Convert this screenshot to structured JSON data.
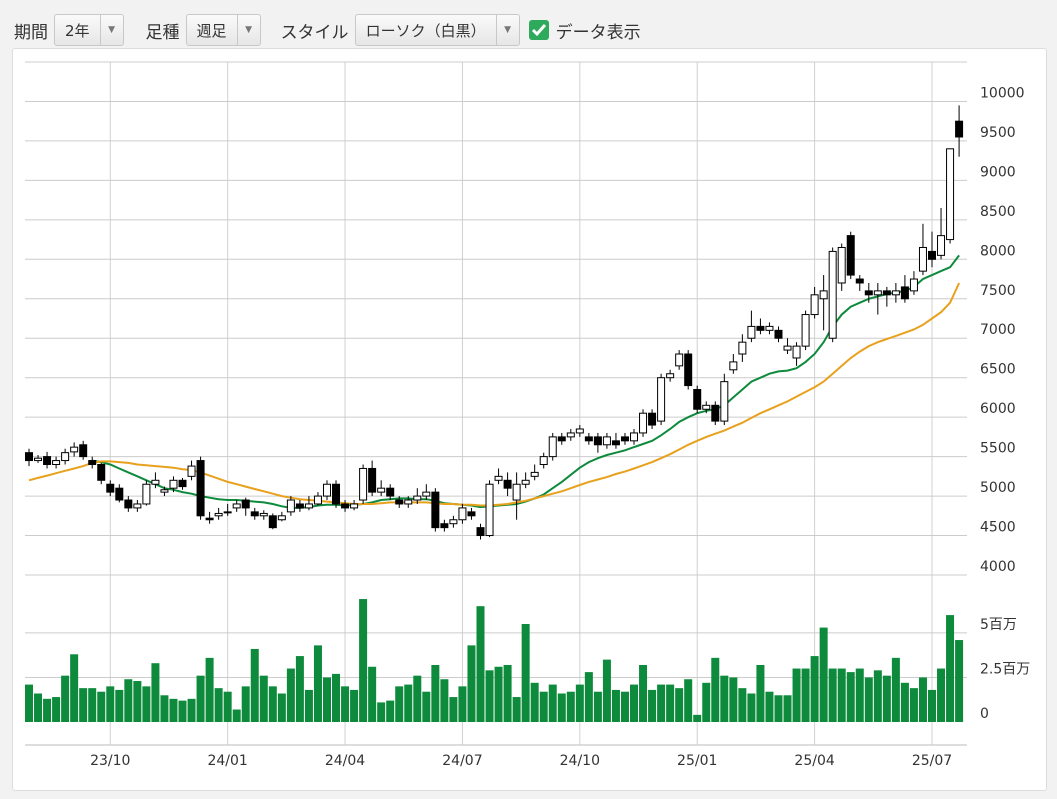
{
  "controls": {
    "period_label": "期間",
    "period": "2年",
    "bar_label": "足種",
    "bar": "週足",
    "style_label": "スタイル",
    "style": "ローソク（白黒）",
    "show_data": "データ表示",
    "data_checked": true
  },
  "chart_data": {
    "type": "candlestick",
    "grid": true,
    "up_color": "#ffffff",
    "down_color": "#000000",
    "categories": [
      null,
      null,
      null,
      null,
      null,
      null,
      null,
      null,
      null,
      "23/10",
      null,
      null,
      null,
      null,
      null,
      null,
      null,
      null,
      null,
      null,
      null,
      null,
      "24/01",
      null,
      null,
      null,
      null,
      null,
      null,
      null,
      null,
      null,
      null,
      null,
      null,
      "24/04",
      null,
      null,
      null,
      null,
      null,
      null,
      null,
      null,
      null,
      null,
      null,
      null,
      "24/07",
      null,
      null,
      null,
      null,
      null,
      null,
      null,
      null,
      null,
      null,
      null,
      null,
      "24/10",
      null,
      null,
      null,
      null,
      null,
      null,
      null,
      null,
      null,
      null,
      null,
      null,
      "25/01",
      null,
      null,
      null,
      null,
      null,
      null,
      null,
      null,
      null,
      null,
      null,
      null,
      "25/04",
      null,
      null,
      null,
      null,
      null,
      null,
      null,
      null,
      null,
      null,
      null,
      null,
      "25/07",
      null,
      null,
      null
    ],
    "open": [
      5550,
      5450,
      5500,
      5400,
      5450,
      5560,
      5650,
      5450,
      5400,
      5150,
      5100,
      4950,
      4850,
      4900,
      5150,
      5050,
      5100,
      5200,
      5250,
      5450,
      4720,
      4750,
      4800,
      4850,
      4950,
      4800,
      4750,
      4750,
      4700,
      4800,
      4900,
      4850,
      4900,
      5000,
      5150,
      4900,
      4850,
      4950,
      5350,
      5050,
      5100,
      4950,
      4900,
      4950,
      5000,
      5050,
      4650,
      4650,
      4700,
      4800,
      4600,
      4500,
      5200,
      5200,
      4950,
      5150,
      5250,
      5400,
      5500,
      5750,
      5750,
      5800,
      5750,
      5750,
      5650,
      5700,
      5750,
      5700,
      5800,
      6050,
      5950,
      6500,
      6650,
      6800,
      6350,
      6100,
      6150,
      5950,
      6600,
      6800,
      7000,
      7150,
      7100,
      7100,
      6850,
      6750,
      6900,
      7300,
      7500,
      7000,
      7700,
      8300,
      7750,
      7600,
      7550,
      7600,
      7550,
      7650,
      7600,
      7850,
      8100,
      8050,
      8250,
      9750
    ],
    "high": [
      5600,
      5520,
      5560,
      5500,
      5600,
      5680,
      5700,
      5500,
      5420,
      5200,
      5150,
      5000,
      4950,
      5200,
      5300,
      5120,
      5250,
      5230,
      5450,
      5500,
      4800,
      4850,
      4900,
      4950,
      4980,
      4850,
      4820,
      4780,
      4800,
      5000,
      4950,
      5000,
      5050,
      5200,
      5200,
      4950,
      4950,
      5400,
      5450,
      5200,
      5150,
      5000,
      5000,
      5100,
      5150,
      5100,
      4700,
      4750,
      4900,
      4850,
      4650,
      5200,
      5350,
      5300,
      5300,
      5300,
      5400,
      5550,
      5800,
      5800,
      5850,
      5900,
      5800,
      5800,
      5800,
      5800,
      5800,
      5850,
      6100,
      6100,
      6550,
      6600,
      6850,
      6850,
      6400,
      6200,
      6200,
      6550,
      6800,
      7050,
      7350,
      7250,
      7200,
      7150,
      7000,
      6950,
      7350,
      7650,
      7800,
      8150,
      8200,
      8350,
      7800,
      7700,
      7700,
      7650,
      7700,
      7800,
      7850,
      8450,
      8350,
      8650,
      9400,
      9950
    ],
    "low": [
      5380,
      5420,
      5350,
      5350,
      5400,
      5500,
      5460,
      5350,
      5150,
      5000,
      4920,
      4800,
      4800,
      4880,
      5100,
      5000,
      5050,
      5080,
      5200,
      4700,
      4650,
      4700,
      4750,
      4800,
      4750,
      4700,
      4700,
      4580,
      4680,
      4750,
      4800,
      4820,
      4880,
      4950,
      4850,
      4800,
      4820,
      4900,
      5000,
      5000,
      4950,
      4850,
      4850,
      4900,
      4950,
      4550,
      4550,
      4600,
      4650,
      4700,
      4450,
      4480,
      5150,
      5000,
      4700,
      5100,
      5200,
      5350,
      5450,
      5650,
      5700,
      5750,
      5650,
      5550,
      5600,
      5600,
      5650,
      5650,
      5750,
      5850,
      5900,
      6450,
      6600,
      6350,
      6050,
      6050,
      5900,
      5900,
      6550,
      6700,
      6950,
      7050,
      7050,
      6950,
      6800,
      6650,
      6850,
      7250,
      7100,
      6950,
      7600,
      7750,
      7600,
      7450,
      7300,
      7400,
      7450,
      7450,
      7550,
      7800,
      7900,
      8000,
      8200,
      9300
    ],
    "close": [
      5450,
      5480,
      5400,
      5450,
      5550,
      5620,
      5500,
      5400,
      5200,
      5050,
      4950,
      4850,
      4900,
      5150,
      5200,
      5080,
      5200,
      5120,
      5380,
      4750,
      4700,
      4780,
      4800,
      4900,
      4850,
      4750,
      4780,
      4600,
      4750,
      4950,
      4850,
      4900,
      5000,
      5150,
      4900,
      4850,
      4900,
      5350,
      5050,
      5100,
      5000,
      4900,
      4950,
      5000,
      5050,
      4600,
      4600,
      4700,
      4850,
      4750,
      4500,
      5150,
      5250,
      5100,
      5150,
      5200,
      5300,
      5500,
      5750,
      5700,
      5800,
      5850,
      5700,
      5650,
      5750,
      5650,
      5700,
      5800,
      6050,
      5900,
      6500,
      6550,
      6800,
      6400,
      6100,
      6150,
      5950,
      6450,
      6700,
      6950,
      7150,
      7100,
      7150,
      7000,
      6900,
      6900,
      7300,
      7550,
      7600,
      8100,
      8150,
      7800,
      7700,
      7550,
      7600,
      7550,
      7600,
      7500,
      7750,
      8150,
      8000,
      8300,
      9400,
      9550
    ],
    "ylim": [
      4000,
      10500
    ],
    "yticks": [
      4000,
      4500,
      5000,
      5500,
      6000,
      6500,
      7000,
      7500,
      8000,
      8500,
      9000,
      9500,
      10000
    ],
    "series": [
      {
        "type": "line",
        "color": "#0d8a3c",
        "values": [
          null,
          null,
          null,
          null,
          null,
          null,
          null,
          5450,
          5430,
          5400,
          5350,
          5300,
          5250,
          5200,
          5150,
          5100,
          5080,
          5050,
          5030,
          5000,
          4980,
          4960,
          4950,
          4950,
          4940,
          4930,
          4920,
          4900,
          4870,
          4850,
          4850,
          4860,
          4880,
          4890,
          4890,
          4880,
          4890,
          4900,
          4920,
          4950,
          4960,
          4970,
          4970,
          4960,
          4960,
          4940,
          4910,
          4900,
          4890,
          4880,
          4860,
          4870,
          4880,
          4890,
          4900,
          4930,
          4970,
          5020,
          5100,
          5180,
          5270,
          5360,
          5430,
          5480,
          5520,
          5550,
          5580,
          5620,
          5660,
          5700,
          5770,
          5850,
          5940,
          6000,
          6050,
          6080,
          6100,
          6150,
          6250,
          6350,
          6450,
          6500,
          6550,
          6580,
          6590,
          6620,
          6700,
          6800,
          6950,
          7150,
          7300,
          7400,
          7450,
          7500,
          7530,
          7560,
          7580,
          7600,
          7650,
          7750,
          7800,
          7850,
          7900,
          8050
        ]
      },
      {
        "type": "line",
        "color": "#e8a11c",
        "values": [
          5200,
          5230,
          5260,
          5290,
          5320,
          5350,
          5380,
          5420,
          5440,
          5440,
          5430,
          5420,
          5400,
          5390,
          5380,
          5370,
          5360,
          5340,
          5330,
          5300,
          5260,
          5220,
          5180,
          5150,
          5120,
          5090,
          5060,
          5030,
          5000,
          4980,
          4960,
          4950,
          4940,
          4930,
          4920,
          4910,
          4900,
          4900,
          4900,
          4910,
          4920,
          4920,
          4920,
          4920,
          4920,
          4910,
          4900,
          4900,
          4890,
          4890,
          4880,
          4880,
          4890,
          4900,
          4920,
          4940,
          4970,
          5000,
          5030,
          5060,
          5100,
          5140,
          5180,
          5210,
          5240,
          5280,
          5310,
          5350,
          5390,
          5430,
          5480,
          5530,
          5590,
          5650,
          5700,
          5750,
          5790,
          5830,
          5880,
          5930,
          5990,
          6050,
          6100,
          6150,
          6200,
          6260,
          6320,
          6380,
          6450,
          6550,
          6650,
          6750,
          6830,
          6900,
          6950,
          6990,
          7030,
          7070,
          7110,
          7170,
          7250,
          7330,
          7450,
          7700
        ]
      }
    ],
    "volume": {
      "type": "bar",
      "color": "#0d8a3c",
      "ylim": [
        0,
        8.25
      ],
      "yticks": [
        0,
        {
          "value": 2.5,
          "label": "2.5百万"
        },
        {
          "value": 5,
          "label": "5百万"
        }
      ],
      "values": [
        2.1,
        1.6,
        1.3,
        1.4,
        2.6,
        3.8,
        1.9,
        1.9,
        1.7,
        2.0,
        1.8,
        2.4,
        2.3,
        2.0,
        3.3,
        1.5,
        1.3,
        1.2,
        1.3,
        2.6,
        3.6,
        1.9,
        1.7,
        0.7,
        2.0,
        4.1,
        2.6,
        2.0,
        1.6,
        3.0,
        3.7,
        1.8,
        4.3,
        2.5,
        2.7,
        2.0,
        1.8,
        6.9,
        3.1,
        1.1,
        1.2,
        2.0,
        2.1,
        2.6,
        1.7,
        3.2,
        2.4,
        1.4,
        2.0,
        4.3,
        6.5,
        2.9,
        3.1,
        3.2,
        1.4,
        5.5,
        2.2,
        1.7,
        2.1,
        1.6,
        1.7,
        2.1,
        2.8,
        1.7,
        3.5,
        1.8,
        1.7,
        2.1,
        3.2,
        1.8,
        2.1,
        2.1,
        1.9,
        2.4,
        0.4,
        2.2,
        3.6,
        2.6,
        2.5,
        1.9,
        1.6,
        3.2,
        1.7,
        1.5,
        1.5,
        3.0,
        3.0,
        3.7,
        5.3,
        3.0,
        3.0,
        2.8,
        3.0,
        2.5,
        2.9,
        2.6,
        3.6,
        2.2,
        1.9,
        2.5,
        1.8,
        3.0,
        6.0,
        4.6
      ]
    }
  }
}
